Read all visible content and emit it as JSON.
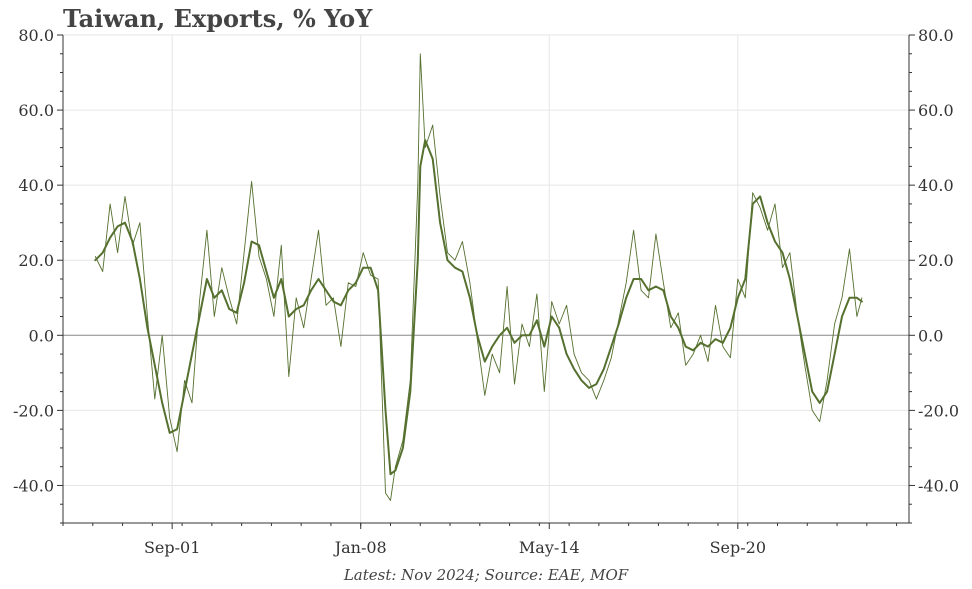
{
  "chart_data": {
    "type": "line",
    "title": "Taiwan, Exports, % YoY",
    "footnote": "Latest: Nov 2024; Source: EAE, MOF",
    "xlabel": "",
    "ylabel": "",
    "ylim": [
      -50,
      80
    ],
    "xlim": [
      "1998-01",
      "2026-06"
    ],
    "x_ticks": [
      {
        "label": "Sep-01",
        "date": "2001-09"
      },
      {
        "label": "Jan-08",
        "date": "2008-01"
      },
      {
        "label": "May-14",
        "date": "2014-05"
      },
      {
        "label": "Sep-20",
        "date": "2020-09"
      }
    ],
    "y_ticks": [
      {
        "label": "80.0",
        "value": 80
      },
      {
        "label": "60.0",
        "value": 60
      },
      {
        "label": "40.0",
        "value": 40
      },
      {
        "label": "20.0",
        "value": 20
      },
      {
        "label": "0.0",
        "value": 0
      },
      {
        "label": "-20.0",
        "value": -20
      },
      {
        "label": "-40.0",
        "value": -40
      }
    ],
    "grid": true,
    "dual_axis": true,
    "zero_line": true,
    "series": [
      {
        "style": "thin",
        "color": "#55702f",
        "x": [
          "1999-02",
          "1999-05",
          "1999-08",
          "1999-11",
          "2000-02",
          "2000-05",
          "2000-08",
          "2000-11",
          "2001-02",
          "2001-05",
          "2001-08",
          "2001-11",
          "2002-02",
          "2002-05",
          "2002-08",
          "2002-11",
          "2003-02",
          "2003-05",
          "2003-08",
          "2003-11",
          "2004-02",
          "2004-05",
          "2004-08",
          "2004-11",
          "2005-02",
          "2005-05",
          "2005-08",
          "2005-11",
          "2006-02",
          "2006-05",
          "2006-08",
          "2006-11",
          "2007-02",
          "2007-05",
          "2007-08",
          "2007-11",
          "2008-02",
          "2008-05",
          "2008-08",
          "2008-11",
          "2009-01",
          "2009-03",
          "2009-06",
          "2009-09",
          "2009-12",
          "2010-01",
          "2010-03",
          "2010-06",
          "2010-09",
          "2010-12",
          "2011-03",
          "2011-06",
          "2011-09",
          "2011-12",
          "2012-03",
          "2012-06",
          "2012-09",
          "2012-12",
          "2013-03",
          "2013-06",
          "2013-09",
          "2013-12",
          "2014-03",
          "2014-06",
          "2014-09",
          "2014-12",
          "2015-03",
          "2015-06",
          "2015-09",
          "2015-12",
          "2016-03",
          "2016-06",
          "2016-09",
          "2016-12",
          "2017-03",
          "2017-06",
          "2017-09",
          "2017-12",
          "2018-03",
          "2018-06",
          "2018-09",
          "2018-12",
          "2019-03",
          "2019-06",
          "2019-09",
          "2019-12",
          "2020-03",
          "2020-06",
          "2020-09",
          "2020-12",
          "2021-03",
          "2021-06",
          "2021-09",
          "2021-12",
          "2022-03",
          "2022-06",
          "2022-09",
          "2022-12",
          "2023-03",
          "2023-06",
          "2023-09",
          "2023-12",
          "2024-03",
          "2024-06",
          "2024-09",
          "2024-11"
        ],
        "values": [
          21,
          17,
          35,
          22,
          37,
          24,
          30,
          5,
          -17,
          0,
          -22,
          -31,
          -12,
          -18,
          9,
          28,
          5,
          18,
          10,
          3,
          22,
          41,
          21,
          15,
          5,
          24,
          -11,
          10,
          2,
          15,
          28,
          8,
          10,
          -3,
          14,
          13,
          22,
          16,
          15,
          -42,
          -44,
          -35,
          -28,
          -12,
          40,
          75,
          50,
          56,
          37,
          22,
          20,
          25,
          14,
          -1,
          -16,
          -5,
          -10,
          13,
          -13,
          3,
          -3,
          11,
          -15,
          9,
          3,
          8,
          -5,
          -10,
          -12,
          -17,
          -12,
          -6,
          4,
          14,
          28,
          12,
          10,
          27,
          14,
          2,
          6,
          -8,
          -5,
          0,
          -7,
          8,
          -3,
          -6,
          15,
          10,
          38,
          34,
          28,
          35,
          18,
          22,
          5,
          -8,
          -20,
          -23,
          -12,
          3,
          10,
          23,
          5,
          10
        ]
      },
      {
        "style": "thick",
        "color": "#55702f",
        "x": [
          "1999-02",
          "1999-05",
          "1999-08",
          "1999-11",
          "2000-02",
          "2000-05",
          "2000-08",
          "2000-11",
          "2001-02",
          "2001-05",
          "2001-08",
          "2001-11",
          "2002-02",
          "2002-05",
          "2002-08",
          "2002-11",
          "2003-02",
          "2003-05",
          "2003-08",
          "2003-11",
          "2004-02",
          "2004-05",
          "2004-08",
          "2004-11",
          "2005-02",
          "2005-05",
          "2005-08",
          "2005-11",
          "2006-02",
          "2006-05",
          "2006-08",
          "2006-11",
          "2007-02",
          "2007-05",
          "2007-08",
          "2007-11",
          "2008-02",
          "2008-05",
          "2008-08",
          "2008-11",
          "2009-01",
          "2009-03",
          "2009-06",
          "2009-09",
          "2009-12",
          "2010-01",
          "2010-03",
          "2010-06",
          "2010-09",
          "2010-12",
          "2011-03",
          "2011-06",
          "2011-09",
          "2011-12",
          "2012-03",
          "2012-06",
          "2012-09",
          "2012-12",
          "2013-03",
          "2013-06",
          "2013-09",
          "2013-12",
          "2014-03",
          "2014-06",
          "2014-09",
          "2014-12",
          "2015-03",
          "2015-06",
          "2015-09",
          "2015-12",
          "2016-03",
          "2016-06",
          "2016-09",
          "2016-12",
          "2017-03",
          "2017-06",
          "2017-09",
          "2017-12",
          "2018-03",
          "2018-06",
          "2018-09",
          "2018-12",
          "2019-03",
          "2019-06",
          "2019-09",
          "2019-12",
          "2020-03",
          "2020-06",
          "2020-09",
          "2020-12",
          "2021-03",
          "2021-06",
          "2021-09",
          "2021-12",
          "2022-03",
          "2022-06",
          "2022-09",
          "2022-12",
          "2023-03",
          "2023-06",
          "2023-09",
          "2023-12",
          "2024-03",
          "2024-06",
          "2024-09",
          "2024-11"
        ],
        "values": [
          20,
          22,
          26,
          29,
          30,
          25,
          15,
          2,
          -8,
          -18,
          -26,
          -25,
          -15,
          -5,
          5,
          15,
          10,
          12,
          7,
          6,
          14,
          25,
          24,
          17,
          10,
          15,
          5,
          7,
          8,
          12,
          15,
          12,
          9,
          8,
          12,
          14,
          18,
          18,
          12,
          -20,
          -37,
          -36,
          -30,
          -15,
          20,
          45,
          52,
          47,
          30,
          20,
          18,
          17,
          10,
          0,
          -7,
          -3,
          0,
          2,
          -2,
          0,
          0,
          4,
          -3,
          5,
          2,
          -5,
          -9,
          -12,
          -14,
          -13,
          -9,
          -3,
          3,
          10,
          15,
          15,
          12,
          13,
          12,
          5,
          2,
          -3,
          -4,
          -2,
          -3,
          -1,
          -2,
          2,
          10,
          15,
          35,
          37,
          30,
          25,
          22,
          15,
          5,
          -5,
          -15,
          -18,
          -15,
          -5,
          5,
          10,
          10,
          9
        ]
      }
    ]
  }
}
